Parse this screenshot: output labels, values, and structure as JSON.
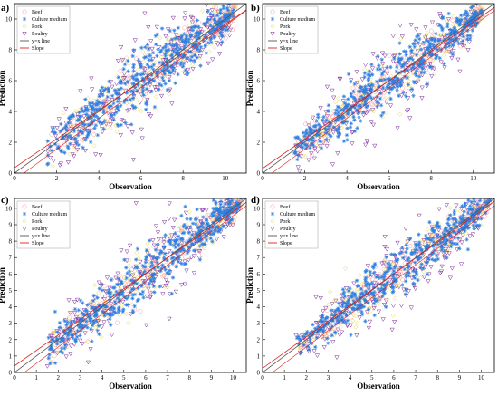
{
  "colors": {
    "beef": "#ff9999",
    "culture": "#2f7fe0",
    "pork": "#e8d24a",
    "poultry": "#7a2a9a",
    "yx_line": "#555555",
    "slope": "#e02020"
  },
  "chart_data": [
    {
      "panel_label": "a)",
      "type": "scatter",
      "xlabel": "Observation",
      "ylabel": "Prediction",
      "xlim": [
        0,
        11
      ],
      "ylim": [
        0,
        11
      ],
      "xticks": [
        0,
        2,
        4,
        6,
        8,
        10
      ],
      "yticks": [
        0,
        2,
        4,
        6,
        8,
        10
      ],
      "legend_position": "top-left",
      "legend": [
        "Beef",
        "Culture medium",
        "Pork",
        "Poultry",
        "y=x line",
        "Slope"
      ],
      "slope": 0.93,
      "intercept": 0.35,
      "series": [
        {
          "name": "Beef",
          "marker": "circle",
          "x_range": [
            1.5,
            10.5
          ],
          "spread": 0.9,
          "n": 150
        },
        {
          "name": "Culture medium",
          "marker": "star",
          "x_range": [
            1.5,
            10.2
          ],
          "spread": 0.9,
          "n": 480
        },
        {
          "name": "Pork",
          "marker": "diamond",
          "x_range": [
            1.5,
            10.5
          ],
          "spread": 1.0,
          "n": 180
        },
        {
          "name": "Poultry",
          "marker": "triangle",
          "x_range": [
            1.5,
            10.3
          ],
          "spread": 1.3,
          "n": 220
        }
      ]
    },
    {
      "panel_label": "b)",
      "type": "scatter",
      "xlabel": "Observation",
      "ylabel": "Prediction",
      "xlim": [
        0,
        11
      ],
      "ylim": [
        0,
        11
      ],
      "xticks": [
        0,
        2,
        4,
        6,
        8,
        10
      ],
      "yticks": [
        0,
        2,
        4,
        6,
        8,
        10
      ],
      "legend_position": "top-left",
      "legend": [
        "Beef",
        "Culture medium",
        "Pork",
        "Poultry",
        "y=x line",
        "Slope"
      ],
      "slope": 0.95,
      "intercept": 0.3,
      "series": [
        {
          "name": "Beef",
          "marker": "circle",
          "x_range": [
            1.5,
            10.5
          ],
          "spread": 0.7,
          "n": 150
        },
        {
          "name": "Culture medium",
          "marker": "star",
          "x_range": [
            1.5,
            10.2
          ],
          "spread": 0.75,
          "n": 480
        },
        {
          "name": "Pork",
          "marker": "diamond",
          "x_range": [
            1.5,
            10.5
          ],
          "spread": 0.9,
          "n": 180
        },
        {
          "name": "Poultry",
          "marker": "triangle",
          "x_range": [
            1.5,
            10.3
          ],
          "spread": 1.2,
          "n": 220
        }
      ]
    },
    {
      "panel_label": "c)",
      "type": "scatter",
      "xlabel": "Observation",
      "ylabel": "Prediction",
      "xlim": [
        0,
        10.6
      ],
      "ylim": [
        0,
        10.6
      ],
      "xticks": [
        0,
        1,
        2,
        3,
        4,
        5,
        6,
        7,
        8,
        9,
        10
      ],
      "yticks": [
        0,
        1,
        2,
        3,
        4,
        5,
        6,
        7,
        8,
        9,
        10
      ],
      "legend_position": "top-left",
      "legend": [
        "Beef",
        "Culture medium",
        "Pork",
        "Poultry",
        "y=x line",
        "Slope"
      ],
      "slope": 0.94,
      "intercept": 0.4,
      "series": [
        {
          "name": "Beef",
          "marker": "circle",
          "x_range": [
            1.5,
            10.3
          ],
          "spread": 0.7,
          "n": 150
        },
        {
          "name": "Culture medium",
          "marker": "star",
          "x_range": [
            1.5,
            10.0
          ],
          "spread": 0.8,
          "n": 480
        },
        {
          "name": "Pork",
          "marker": "diamond",
          "x_range": [
            1.5,
            10.3
          ],
          "spread": 0.9,
          "n": 180
        },
        {
          "name": "Poultry",
          "marker": "triangle",
          "x_range": [
            1.5,
            10.0
          ],
          "spread": 1.2,
          "n": 220
        }
      ]
    },
    {
      "panel_label": "d)",
      "type": "scatter",
      "xlabel": "Observation",
      "ylabel": "Prediction",
      "xlim": [
        0,
        10.6
      ],
      "ylim": [
        0,
        10.6
      ],
      "xticks": [
        0,
        1,
        2,
        3,
        4,
        5,
        6,
        7,
        8,
        9,
        10
      ],
      "yticks": [
        0,
        1,
        2,
        3,
        4,
        5,
        6,
        7,
        8,
        9,
        10
      ],
      "legend_position": "top-left",
      "legend": [
        "Beef",
        "Culture medium",
        "Pork",
        "Poultry",
        "y=x line",
        "Slope"
      ],
      "slope": 0.96,
      "intercept": 0.25,
      "series": [
        {
          "name": "Beef",
          "marker": "circle",
          "x_range": [
            1.5,
            10.3
          ],
          "spread": 0.6,
          "n": 150
        },
        {
          "name": "Culture medium",
          "marker": "star",
          "x_range": [
            1.5,
            10.0
          ],
          "spread": 0.7,
          "n": 480
        },
        {
          "name": "Pork",
          "marker": "diamond",
          "x_range": [
            1.5,
            10.3
          ],
          "spread": 0.8,
          "n": 180
        },
        {
          "name": "Poultry",
          "marker": "triangle",
          "x_range": [
            1.5,
            10.0
          ],
          "spread": 1.1,
          "n": 220
        }
      ]
    }
  ]
}
